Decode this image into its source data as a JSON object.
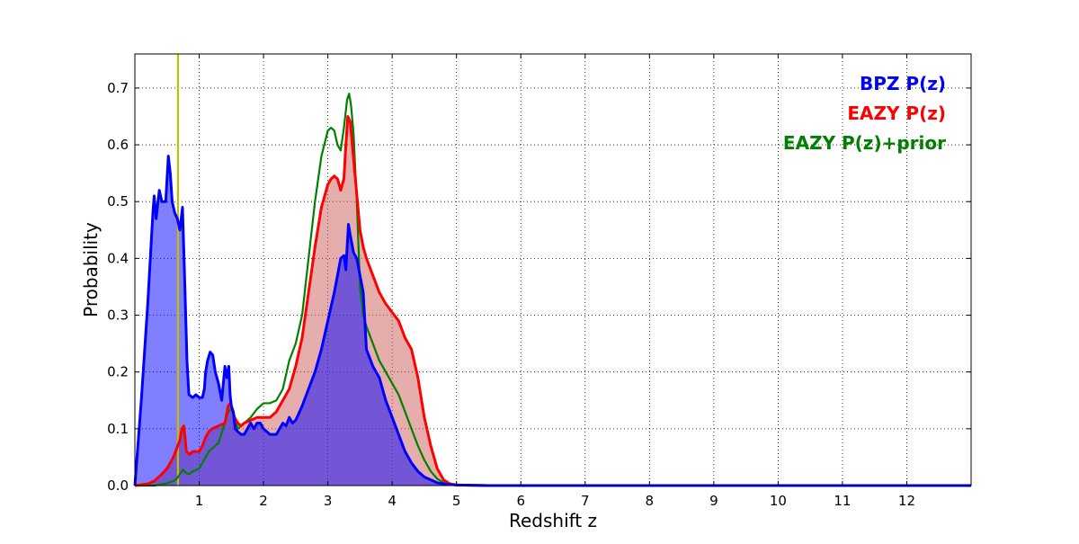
{
  "chart_data": {
    "type": "area",
    "xlabel": "Redshift z",
    "ylabel": "Probability",
    "xlim": [
      0,
      13
    ],
    "ylim": [
      0,
      0.76
    ],
    "grid": true,
    "legend_position": "top-right",
    "x_ticks": [
      1,
      2,
      3,
      4,
      5,
      6,
      7,
      8,
      9,
      10,
      11,
      12
    ],
    "y_ticks": [
      0.0,
      0.1,
      0.2,
      0.3,
      0.4,
      0.5,
      0.6,
      0.7
    ],
    "x_tick_labels": [
      "1",
      "2",
      "3",
      "4",
      "5",
      "6",
      "7",
      "8",
      "9",
      "10",
      "11",
      "12"
    ],
    "y_tick_labels": [
      "0.0",
      "0.1",
      "0.2",
      "0.3",
      "0.4",
      "0.5",
      "0.6",
      "0.7"
    ],
    "reference_line": {
      "x": 0.67,
      "color": "#bfbf00"
    },
    "series": [
      {
        "name": "BPZ P(z)",
        "color": "#0000ff",
        "fill": "#0000ff",
        "fill_opacity": 0.5,
        "x": [
          0.0,
          0.1,
          0.2,
          0.25,
          0.28,
          0.3,
          0.33,
          0.38,
          0.42,
          0.48,
          0.52,
          0.55,
          0.58,
          0.62,
          0.66,
          0.7,
          0.74,
          0.77,
          0.79,
          0.81,
          0.84,
          0.9,
          0.95,
          1.0,
          1.05,
          1.08,
          1.1,
          1.13,
          1.17,
          1.21,
          1.25,
          1.3,
          1.35,
          1.4,
          1.43,
          1.46,
          1.48,
          1.5,
          1.53,
          1.56,
          1.6,
          1.65,
          1.7,
          1.8,
          1.85,
          1.9,
          1.95,
          2.0,
          2.1,
          2.2,
          2.25,
          2.3,
          2.35,
          2.4,
          2.45,
          2.5,
          2.6,
          2.7,
          2.8,
          2.9,
          3.0,
          3.1,
          3.15,
          3.2,
          3.25,
          3.28,
          3.3,
          3.32,
          3.35,
          3.4,
          3.45,
          3.5,
          3.55,
          3.6,
          3.7,
          3.8,
          3.9,
          4.0,
          4.1,
          4.2,
          4.3,
          4.4,
          4.5,
          4.6,
          4.7,
          4.8,
          4.9,
          5.0,
          5.5,
          6.0,
          8.0,
          10.0,
          13.0
        ],
        "y": [
          0.0,
          0.15,
          0.32,
          0.42,
          0.48,
          0.51,
          0.47,
          0.52,
          0.5,
          0.5,
          0.58,
          0.55,
          0.5,
          0.48,
          0.47,
          0.45,
          0.49,
          0.38,
          0.3,
          0.22,
          0.16,
          0.155,
          0.16,
          0.155,
          0.155,
          0.17,
          0.2,
          0.22,
          0.235,
          0.23,
          0.2,
          0.18,
          0.15,
          0.21,
          0.19,
          0.21,
          0.16,
          0.14,
          0.13,
          0.1,
          0.095,
          0.09,
          0.09,
          0.11,
          0.1,
          0.11,
          0.11,
          0.1,
          0.09,
          0.09,
          0.1,
          0.11,
          0.105,
          0.12,
          0.11,
          0.115,
          0.14,
          0.17,
          0.2,
          0.24,
          0.29,
          0.34,
          0.37,
          0.4,
          0.405,
          0.38,
          0.42,
          0.46,
          0.44,
          0.41,
          0.4,
          0.37,
          0.34,
          0.24,
          0.21,
          0.19,
          0.15,
          0.12,
          0.09,
          0.06,
          0.04,
          0.025,
          0.015,
          0.01,
          0.005,
          0.003,
          0.002,
          0.001,
          0.0,
          0.0,
          0.0,
          0.0,
          0.0
        ]
      },
      {
        "name": "EAZY P(z)",
        "color": "#ff0000",
        "fill": "#cd5c5c",
        "fill_opacity": 0.5,
        "x": [
          0.0,
          0.2,
          0.3,
          0.4,
          0.5,
          0.55,
          0.6,
          0.65,
          0.7,
          0.73,
          0.76,
          0.78,
          0.8,
          0.85,
          0.9,
          1.0,
          1.05,
          1.1,
          1.15,
          1.2,
          1.3,
          1.4,
          1.45,
          1.48,
          1.5,
          1.55,
          1.6,
          1.65,
          1.7,
          1.8,
          1.9,
          2.0,
          2.1,
          2.2,
          2.3,
          2.4,
          2.5,
          2.6,
          2.7,
          2.8,
          2.9,
          3.0,
          3.05,
          3.1,
          3.15,
          3.2,
          3.25,
          3.28,
          3.31,
          3.35,
          3.38,
          3.42,
          3.46,
          3.5,
          3.55,
          3.6,
          3.7,
          3.8,
          3.9,
          4.0,
          4.1,
          4.2,
          4.3,
          4.4,
          4.5,
          4.6,
          4.7,
          4.8,
          4.9,
          5.0,
          5.5,
          6.0,
          8.0,
          10.0,
          13.0
        ],
        "y": [
          0.0,
          0.003,
          0.008,
          0.018,
          0.03,
          0.04,
          0.05,
          0.065,
          0.08,
          0.1,
          0.105,
          0.085,
          0.06,
          0.055,
          0.06,
          0.06,
          0.07,
          0.085,
          0.095,
          0.1,
          0.105,
          0.11,
          0.14,
          0.145,
          0.14,
          0.12,
          0.11,
          0.105,
          0.11,
          0.115,
          0.12,
          0.12,
          0.12,
          0.13,
          0.15,
          0.17,
          0.21,
          0.26,
          0.34,
          0.42,
          0.49,
          0.53,
          0.54,
          0.545,
          0.54,
          0.52,
          0.54,
          0.6,
          0.65,
          0.64,
          0.6,
          0.55,
          0.5,
          0.45,
          0.42,
          0.4,
          0.37,
          0.34,
          0.32,
          0.305,
          0.29,
          0.26,
          0.24,
          0.19,
          0.12,
          0.07,
          0.03,
          0.01,
          0.003,
          0.001,
          0.0,
          0.0,
          0.0,
          0.0,
          0.0
        ]
      },
      {
        "name": "EAZY P(z)+prior",
        "color": "#008000",
        "fill": "none",
        "fill_opacity": 0,
        "x": [
          0.0,
          0.3,
          0.4,
          0.5,
          0.6,
          0.65,
          0.7,
          0.75,
          0.8,
          0.85,
          0.9,
          1.0,
          1.05,
          1.1,
          1.15,
          1.2,
          1.3,
          1.4,
          1.45,
          1.5,
          1.55,
          1.6,
          1.65,
          1.7,
          1.8,
          1.9,
          2.0,
          2.1,
          2.2,
          2.3,
          2.4,
          2.5,
          2.6,
          2.7,
          2.8,
          2.9,
          3.0,
          3.05,
          3.1,
          3.15,
          3.2,
          3.25,
          3.3,
          3.33,
          3.36,
          3.4,
          3.45,
          3.5,
          3.55,
          3.6,
          3.7,
          3.8,
          3.9,
          4.0,
          4.1,
          4.2,
          4.3,
          4.4,
          4.5,
          4.6,
          4.7,
          4.8,
          4.9,
          5.0,
          5.5,
          6.0,
          8.0,
          10.0,
          13.0
        ],
        "y": [
          0.0,
          0.0,
          0.002,
          0.004,
          0.008,
          0.012,
          0.02,
          0.028,
          0.022,
          0.02,
          0.025,
          0.03,
          0.04,
          0.05,
          0.06,
          0.065,
          0.075,
          0.11,
          0.13,
          0.135,
          0.12,
          0.1,
          0.105,
          0.11,
          0.12,
          0.135,
          0.145,
          0.145,
          0.15,
          0.17,
          0.22,
          0.25,
          0.3,
          0.4,
          0.5,
          0.58,
          0.625,
          0.63,
          0.625,
          0.6,
          0.59,
          0.63,
          0.68,
          0.69,
          0.67,
          0.62,
          0.5,
          0.35,
          0.3,
          0.28,
          0.25,
          0.22,
          0.2,
          0.18,
          0.16,
          0.13,
          0.1,
          0.07,
          0.045,
          0.025,
          0.012,
          0.005,
          0.002,
          0.001,
          0.0,
          0.0,
          0.0,
          0.0,
          0.0
        ]
      }
    ]
  }
}
